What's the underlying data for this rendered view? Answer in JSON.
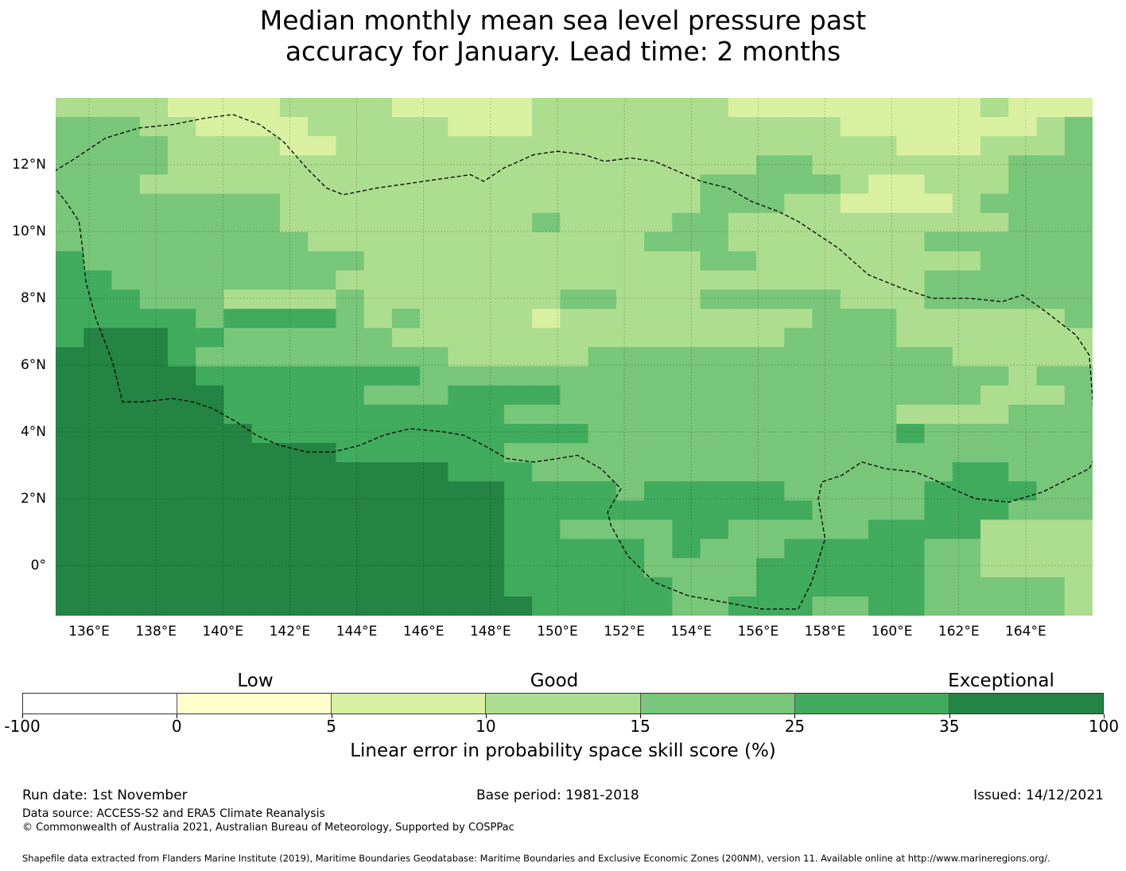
{
  "title": {
    "line1": "Median monthly mean sea level pressure past",
    "line2": "accuracy for January. Lead time: 2 months"
  },
  "map": {
    "lon_range": [
      135,
      166
    ],
    "lat_range": [
      -1.5,
      14
    ],
    "x_ticks": [
      "136°E",
      "138°E",
      "140°E",
      "142°E",
      "144°E",
      "146°E",
      "148°E",
      "150°E",
      "152°E",
      "154°E",
      "156°E",
      "158°E",
      "160°E",
      "162°E",
      "164°E"
    ],
    "x_tick_values": [
      136,
      138,
      140,
      142,
      144,
      146,
      148,
      150,
      152,
      154,
      156,
      158,
      160,
      162,
      164
    ],
    "y_ticks": [
      "12°N",
      "10°N",
      "8°N",
      "6°N",
      "4°N",
      "2°N",
      "0°"
    ],
    "y_tick_values": [
      12,
      10,
      8,
      6,
      4,
      2,
      0
    ],
    "grid_rows_legend": "0=white,1=0-5,2=5-10,3=10-15,4=15-25,5=25-35,6=35-100 (rows from north to south, 27 rows x 37 cols)",
    "grid": [
      "3333222233332222233333332222222223222",
      "4443322223333322233333333333222222234",
      "4444333322333333333333333333332223334",
      "4444333333333333333333333443333333444",
      "4443333333333333333333344444322333444",
      "4444444433333333333333344433222234444",
      "4444444433333333343333443333333333444",
      "4444444443333333333334443333333444444",
      "5444444444433333333333344333333334444",
      "5544444444333333333333333333333444444",
      "5554443333433333334433344444333444444",
      "5555545555434333323333333334443333334",
      "5666554444443333333333333344443333333",
      "6666544444444433333444444444444433333",
      "6666655555555444444444444444444444344",
      "6666665555544455554444444444444443334",
      "6666665555555555444444444444443333444",
      "6666666555555555555444444444445444444",
      "6666666666555555444444444444444444444",
      "6666666666666655544444444444444455444",
      "6666666666666666555545555544444555544",
      "6666666666666666555555555554444555444",
      "6666666666666666554444554444455553333",
      "6666666666666666555554544455555443333",
      "6666666666666666555554444555555443333",
      "6666666666666666555555444555555444443",
      "6666666666666666655555445554455444443"
    ],
    "boundary": [
      [
        134.8,
        11.7
      ],
      [
        135.6,
        12.2
      ],
      [
        136.5,
        12.8
      ],
      [
        137.5,
        13.1
      ],
      [
        138.5,
        13.2
      ],
      [
        139.5,
        13.4
      ],
      [
        140.3,
        13.5
      ],
      [
        141.1,
        13.2
      ],
      [
        141.8,
        12.7
      ],
      [
        142.5,
        11.9
      ],
      [
        143.1,
        11.3
      ],
      [
        143.6,
        11.1
      ],
      [
        144.6,
        11.3
      ],
      [
        146.0,
        11.5
      ],
      [
        147.4,
        11.7
      ],
      [
        147.8,
        11.5
      ],
      [
        148.4,
        11.9
      ],
      [
        149.3,
        12.3
      ],
      [
        150.0,
        12.4
      ],
      [
        150.8,
        12.3
      ],
      [
        151.4,
        12.1
      ],
      [
        152.2,
        12.2
      ],
      [
        152.9,
        12.1
      ],
      [
        153.6,
        11.8
      ],
      [
        154.3,
        11.5
      ],
      [
        155.1,
        11.3
      ],
      [
        155.8,
        10.9
      ],
      [
        156.6,
        10.6
      ],
      [
        157.2,
        10.3
      ],
      [
        157.8,
        9.9
      ],
      [
        158.4,
        9.5
      ],
      [
        159.3,
        8.7
      ],
      [
        160.3,
        8.3
      ],
      [
        161.2,
        8.0
      ],
      [
        162.3,
        8.0
      ],
      [
        163.3,
        7.9
      ],
      [
        163.9,
        8.1
      ],
      [
        164.6,
        7.6
      ],
      [
        165.5,
        6.9
      ],
      [
        165.9,
        6.3
      ],
      [
        166.0,
        5.0
      ],
      [
        166.1,
        3.3
      ],
      [
        165.9,
        2.9
      ],
      [
        165.3,
        2.6
      ],
      [
        164.5,
        2.2
      ],
      [
        163.5,
        1.9
      ],
      [
        162.5,
        2.0
      ],
      [
        161.8,
        2.3
      ],
      [
        161.2,
        2.6
      ],
      [
        160.7,
        2.8
      ],
      [
        159.8,
        2.9
      ],
      [
        159.1,
        3.1
      ],
      [
        158.5,
        2.7
      ],
      [
        157.9,
        2.5
      ],
      [
        157.8,
        2.0
      ],
      [
        158.0,
        0.8
      ],
      [
        157.6,
        -0.5
      ],
      [
        157.2,
        -1.3
      ],
      [
        156.1,
        -1.3
      ],
      [
        155.0,
        -1.1
      ],
      [
        153.9,
        -0.9
      ],
      [
        152.9,
        -0.5
      ],
      [
        152.1,
        0.3
      ],
      [
        151.6,
        1.2
      ],
      [
        151.5,
        1.6
      ],
      [
        151.9,
        2.3
      ],
      [
        151.3,
        2.9
      ],
      [
        150.6,
        3.3
      ],
      [
        150.0,
        3.2
      ],
      [
        149.3,
        3.1
      ],
      [
        148.5,
        3.2
      ],
      [
        147.8,
        3.6
      ],
      [
        147.2,
        3.9
      ],
      [
        146.6,
        4.0
      ],
      [
        145.6,
        4.1
      ],
      [
        144.8,
        3.9
      ],
      [
        144.1,
        3.6
      ],
      [
        143.3,
        3.4
      ],
      [
        142.5,
        3.4
      ],
      [
        141.7,
        3.6
      ],
      [
        141.0,
        3.9
      ],
      [
        140.4,
        4.3
      ],
      [
        139.7,
        4.7
      ],
      [
        139.1,
        4.9
      ],
      [
        138.5,
        5.0
      ],
      [
        137.6,
        4.9
      ],
      [
        137.0,
        4.9
      ],
      [
        136.7,
        6.1
      ],
      [
        136.2,
        7.4
      ],
      [
        135.9,
        8.5
      ],
      [
        135.8,
        9.5
      ],
      [
        135.7,
        10.3
      ],
      [
        135.3,
        10.9
      ],
      [
        134.9,
        11.4
      ],
      [
        134.8,
        11.7
      ]
    ]
  },
  "colorbar": {
    "colors": [
      "#ffffff",
      "#ffffcc",
      "#d9f0a3",
      "#addd8e",
      "#78c679",
      "#41ab5d",
      "#238443"
    ],
    "ticks": [
      "-100",
      "0",
      "5",
      "10",
      "15",
      "25",
      "35",
      "100"
    ],
    "categories": {
      "low": "Low",
      "good": "Good",
      "exceptional": "Exceptional"
    },
    "label": "Linear error in probability space skill score (%)"
  },
  "footer": {
    "run_date": "Run date: 1st November",
    "base_period": "Base period: 1981-2018",
    "issued": "Issued: 14/12/2021",
    "data_source": "Data source: ACCESS-S2 and ERA5 Climate Reanalysis",
    "copyright": "© Commonwealth of Australia 2021, Australian Bureau of Meteorology, Supported by COSPPac",
    "shapefile": "Shapefile data extracted from Flanders Marine Institute (2019), Maritime Boundaries Geodatabase: Maritime Boundaries and Exclusive Economic Zones (200NM), version 11. Available online at http://www.marineregions.org/."
  }
}
